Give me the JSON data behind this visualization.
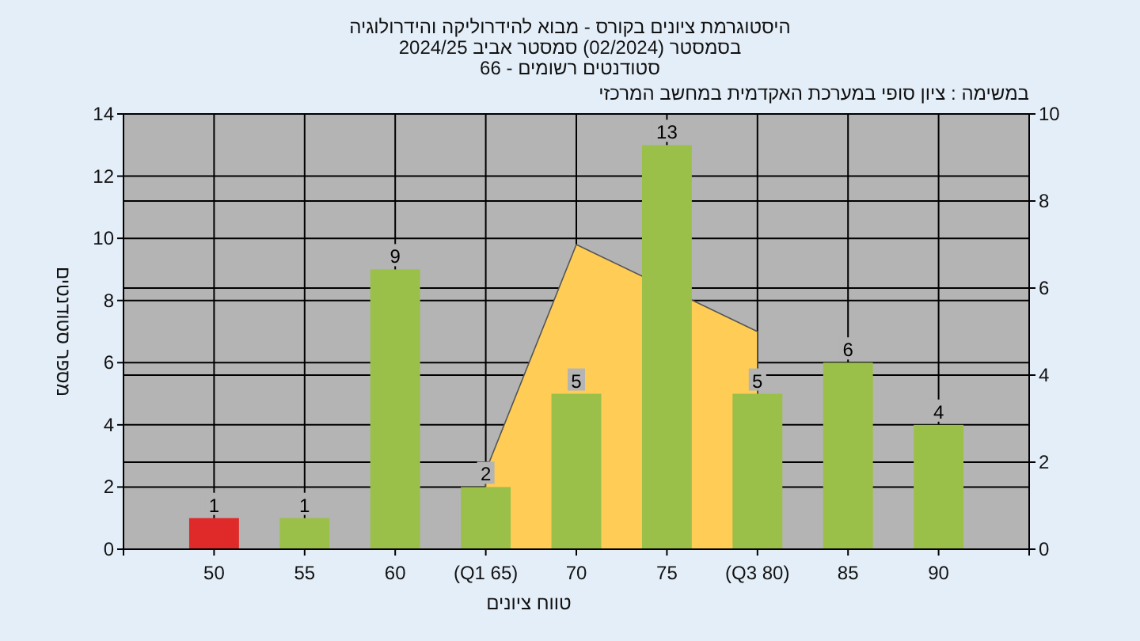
{
  "chart_data": {
    "type": "bar",
    "title": "היסטוגרמת ציונים בקורס - מבוא להידרוליקה והידרולוגיה",
    "subtitle": "בסמסטר  (02/2024)  סמסטר אביב 2024/25\nסטודנטים רשומים - 66",
    "xlabel": "טווח ציונים",
    "ylabel": "מספר סטודנטים",
    "annotations": [
      "במשימה : ציון סופי במערכת האקדמית במחשב המרכזי"
    ],
    "categories": [
      "50",
      "55",
      "60",
      "(Q1 65)",
      "70",
      "75",
      "(Q3 80)",
      "85",
      "90"
    ],
    "ylim": [
      0,
      14
    ],
    "yticks": [
      0,
      2,
      4,
      6,
      8,
      10,
      12,
      14
    ],
    "y2lim": [
      0,
      10
    ],
    "y2ticks": [
      0,
      2,
      4,
      6,
      8,
      10
    ],
    "grid": true,
    "series": [
      {
        "type": "area",
        "axis": "y2",
        "color": "#ffcc55",
        "values": [
          null,
          null,
          null,
          1.8,
          7.0,
          null,
          5.0,
          null,
          null
        ]
      },
      {
        "colors": [
          "#e02a2a",
          "#9bc04a",
          "#9bc04a",
          "#9bc04a",
          "#9bc04a",
          "#9bc04a",
          "#9bc04a",
          "#9bc04a",
          "#9bc04a"
        ],
        "values": [
          1,
          1,
          9,
          2,
          5,
          13,
          5,
          6,
          4
        ],
        "value_labels": [
          "1",
          "1",
          "9",
          "2",
          "5",
          "13",
          "5",
          "6",
          "4"
        ]
      }
    ]
  }
}
